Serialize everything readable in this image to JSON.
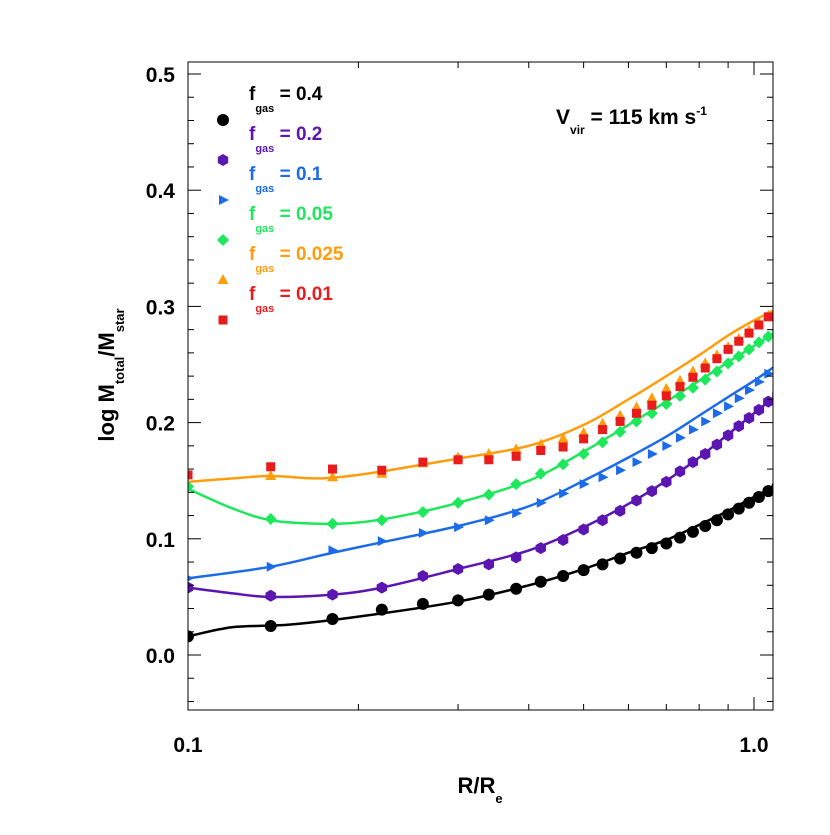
{
  "chart_data": {
    "type": "line",
    "xscale": "log",
    "xlim": [
      0.1,
      1.1
    ],
    "ylim": [
      -0.05,
      0.51
    ],
    "x_ticks": [
      0.1,
      1.0
    ],
    "x_tick_labels": [
      "0.1",
      "1.0"
    ],
    "y_ticks": [
      0.0,
      0.1,
      0.2,
      0.3,
      0.4,
      0.5
    ],
    "y_tick_labels": [
      "0.0",
      "0.1",
      "0.2",
      "0.3",
      "0.4",
      "0.5"
    ],
    "xlabel": {
      "main": "R/R",
      "sub": "e"
    },
    "ylabel": {
      "p1": "log M",
      "sub1": "total",
      "p2": "/M",
      "sub2": "star"
    },
    "annotation": {
      "main": "V",
      "sub": "vir",
      "rest": " = 115 km s",
      "sup": "-1"
    },
    "legend_position": "top-left",
    "series": [
      {
        "name": "f_gas = 0.4",
        "label_main": "f",
        "label_sub": "gas",
        "label_rest": " = 0.4",
        "color": "#000000",
        "marker": "circle",
        "curve_x": [
          0.1,
          0.12,
          0.15,
          0.2,
          0.3,
          0.4,
          0.5,
          0.6,
          0.7,
          0.8,
          0.9,
          1.0,
          1.1
        ],
        "curve_y": [
          0.016,
          0.024,
          0.026,
          0.033,
          0.046,
          0.06,
          0.074,
          0.088,
          0.099,
          0.112,
          0.124,
          0.136,
          0.145
        ],
        "points_x": [
          0.1,
          0.14,
          0.18,
          0.22,
          0.26,
          0.3,
          0.34,
          0.38,
          0.42,
          0.46,
          0.5,
          0.54,
          0.58,
          0.62,
          0.66,
          0.7,
          0.74,
          0.78,
          0.82,
          0.86,
          0.9,
          0.94,
          0.98,
          1.02,
          1.06,
          1.1
        ],
        "points_y": [
          0.016,
          0.025,
          0.031,
          0.039,
          0.044,
          0.047,
          0.052,
          0.057,
          0.063,
          0.068,
          0.073,
          0.078,
          0.083,
          0.088,
          0.092,
          0.096,
          0.101,
          0.106,
          0.111,
          0.116,
          0.121,
          0.126,
          0.131,
          0.136,
          0.141,
          0.145
        ]
      },
      {
        "name": "f_gas = 0.2",
        "label_main": "f",
        "label_sub": "gas",
        "label_rest": " = 0.2",
        "color": "#5b15b0",
        "marker": "hexagon",
        "curve_x": [
          0.1,
          0.12,
          0.14,
          0.18,
          0.22,
          0.3,
          0.4,
          0.5,
          0.6,
          0.7,
          0.8,
          0.9,
          1.0,
          1.1
        ],
        "curve_y": [
          0.058,
          0.053,
          0.05,
          0.052,
          0.058,
          0.074,
          0.09,
          0.11,
          0.13,
          0.15,
          0.17,
          0.19,
          0.208,
          0.224
        ],
        "points_x": [
          0.1,
          0.14,
          0.18,
          0.22,
          0.26,
          0.3,
          0.34,
          0.38,
          0.42,
          0.46,
          0.5,
          0.54,
          0.58,
          0.62,
          0.66,
          0.7,
          0.74,
          0.78,
          0.82,
          0.86,
          0.9,
          0.94,
          0.98,
          1.02,
          1.06,
          1.1
        ],
        "points_y": [
          0.058,
          0.051,
          0.052,
          0.058,
          0.068,
          0.074,
          0.078,
          0.084,
          0.092,
          0.099,
          0.108,
          0.116,
          0.124,
          0.133,
          0.141,
          0.149,
          0.158,
          0.166,
          0.173,
          0.181,
          0.189,
          0.197,
          0.204,
          0.211,
          0.218,
          0.224
        ]
      },
      {
        "name": "f_gas = 0.1",
        "label_main": "f",
        "label_sub": "gas",
        "label_rest": " = 0.1",
        "color": "#1c6be8",
        "marker": "triangle-right",
        "curve_x": [
          0.1,
          0.14,
          0.18,
          0.22,
          0.3,
          0.4,
          0.5,
          0.6,
          0.7,
          0.8,
          0.9,
          1.0,
          1.1
        ],
        "curve_y": [
          0.066,
          0.076,
          0.088,
          0.097,
          0.111,
          0.128,
          0.15,
          0.17,
          0.188,
          0.206,
          0.222,
          0.236,
          0.25
        ],
        "points_x": [
          0.1,
          0.14,
          0.18,
          0.22,
          0.26,
          0.3,
          0.34,
          0.38,
          0.42,
          0.46,
          0.5,
          0.54,
          0.58,
          0.62,
          0.66,
          0.7,
          0.74,
          0.78,
          0.82,
          0.86,
          0.9,
          0.94,
          0.98,
          1.02,
          1.06,
          1.1
        ],
        "points_y": [
          0.066,
          0.076,
          0.09,
          0.098,
          0.105,
          0.11,
          0.116,
          0.122,
          0.131,
          0.139,
          0.147,
          0.153,
          0.159,
          0.166,
          0.173,
          0.18,
          0.187,
          0.194,
          0.201,
          0.208,
          0.214,
          0.221,
          0.228,
          0.235,
          0.242,
          0.25
        ]
      },
      {
        "name": "f_gas = 0.05",
        "label_main": "f",
        "label_sub": "gas",
        "label_rest": " = 0.05",
        "color": "#1de85c",
        "marker": "diamond",
        "curve_x": [
          0.1,
          0.12,
          0.14,
          0.17,
          0.2,
          0.24,
          0.3,
          0.4,
          0.5,
          0.6,
          0.7,
          0.8,
          0.9,
          1.0,
          1.1
        ],
        "curve_y": [
          0.143,
          0.126,
          0.116,
          0.113,
          0.114,
          0.12,
          0.131,
          0.15,
          0.175,
          0.198,
          0.218,
          0.236,
          0.252,
          0.266,
          0.279
        ],
        "points_x": [
          0.1,
          0.14,
          0.18,
          0.22,
          0.26,
          0.3,
          0.34,
          0.38,
          0.42,
          0.46,
          0.5,
          0.54,
          0.58,
          0.62,
          0.66,
          0.7,
          0.74,
          0.78,
          0.82,
          0.86,
          0.9,
          0.94,
          0.98,
          1.02,
          1.06,
          1.1
        ],
        "points_y": [
          0.145,
          0.117,
          0.113,
          0.116,
          0.123,
          0.131,
          0.138,
          0.147,
          0.156,
          0.164,
          0.173,
          0.183,
          0.192,
          0.201,
          0.208,
          0.216,
          0.223,
          0.23,
          0.237,
          0.244,
          0.251,
          0.257,
          0.263,
          0.269,
          0.274,
          0.279
        ]
      },
      {
        "name": "f_gas = 0.025",
        "label_main": "f",
        "label_sub": "gas",
        "label_rest": " = 0.025",
        "color": "#ff9d0d",
        "marker": "triangle-up",
        "curve_x": [
          0.1,
          0.12,
          0.14,
          0.17,
          0.2,
          0.24,
          0.3,
          0.4,
          0.5,
          0.6,
          0.7,
          0.8,
          0.9,
          1.0,
          1.1
        ],
        "curve_y": [
          0.149,
          0.152,
          0.154,
          0.152,
          0.155,
          0.161,
          0.169,
          0.18,
          0.198,
          0.22,
          0.24,
          0.258,
          0.275,
          0.288,
          0.298
        ],
        "points_x": [
          0.14,
          0.18,
          0.22,
          0.26,
          0.3,
          0.34,
          0.38,
          0.42,
          0.46,
          0.5,
          0.54,
          0.58,
          0.62,
          0.66,
          0.7,
          0.74,
          0.78,
          0.82,
          0.86,
          0.9,
          0.94,
          0.98,
          1.02,
          1.06,
          1.1
        ],
        "points_y": [
          0.154,
          0.153,
          0.156,
          0.165,
          0.17,
          0.173,
          0.177,
          0.181,
          0.186,
          0.191,
          0.199,
          0.206,
          0.213,
          0.221,
          0.229,
          0.236,
          0.244,
          0.251,
          0.258,
          0.265,
          0.272,
          0.279,
          0.286,
          0.292,
          0.298
        ]
      },
      {
        "name": "f_gas = 0.01",
        "label_main": "f",
        "label_sub": "gas",
        "label_rest": " = 0.01",
        "color": "#e81c1c",
        "marker": "square",
        "curve_x": [],
        "curve_y": [],
        "points_x": [
          0.1,
          0.14,
          0.18,
          0.22,
          0.26,
          0.3,
          0.34,
          0.38,
          0.42,
          0.46,
          0.5,
          0.54,
          0.58,
          0.62,
          0.66,
          0.7,
          0.74,
          0.78,
          0.82,
          0.86,
          0.9,
          0.94,
          0.98,
          1.02,
          1.06,
          1.1
        ],
        "points_y": [
          0.155,
          0.162,
          0.16,
          0.159,
          0.166,
          0.168,
          0.168,
          0.171,
          0.176,
          0.179,
          0.186,
          0.194,
          0.201,
          0.208,
          0.215,
          0.223,
          0.231,
          0.239,
          0.247,
          0.255,
          0.263,
          0.27,
          0.277,
          0.284,
          0.291,
          0.297
        ]
      }
    ]
  }
}
